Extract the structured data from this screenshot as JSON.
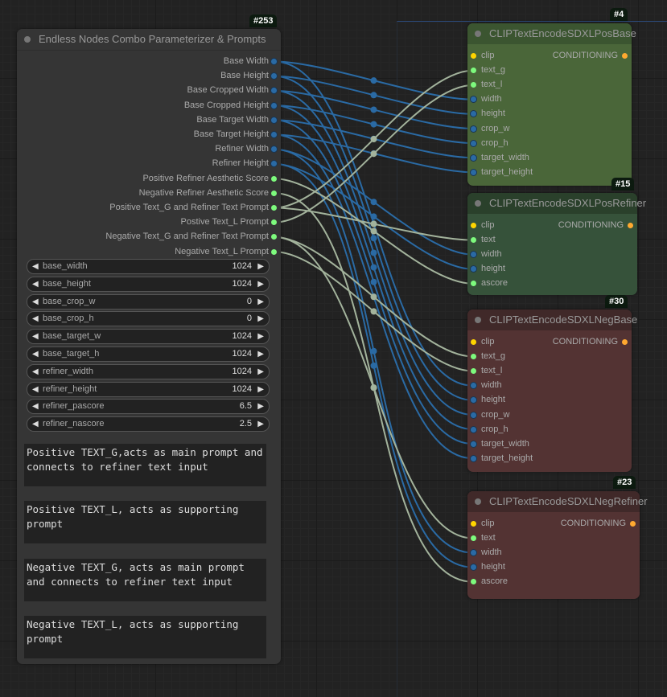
{
  "main_node": {
    "id": "#253",
    "title": "Endless Nodes Combo Parameterizer & Prompts",
    "outputs": [
      {
        "label": "Base Width",
        "type": "INT"
      },
      {
        "label": "Base Height",
        "type": "INT"
      },
      {
        "label": "Base Cropped Width",
        "type": "INT"
      },
      {
        "label": "Base Cropped Height",
        "type": "INT"
      },
      {
        "label": "Base Target Width",
        "type": "INT"
      },
      {
        "label": "Base Target Height",
        "type": "INT"
      },
      {
        "label": "Refiner Width",
        "type": "INT"
      },
      {
        "label": "Refiner Height",
        "type": "INT"
      },
      {
        "label": "Positive Refiner Aesthetic Score",
        "type": "FLOAT"
      },
      {
        "label": "Negative Refiner Aesthetic Score",
        "type": "FLOAT"
      },
      {
        "label": "Positive Text_G and Refiner Text Prompt",
        "type": "STRING"
      },
      {
        "label": "Postive Text_L Prompt",
        "type": "STRING"
      },
      {
        "label": "Negative Text_G and Refiner Text Prompt",
        "type": "STRING"
      },
      {
        "label": "Negative Text_L Prompt",
        "type": "STRING"
      }
    ],
    "widgets": [
      {
        "name": "base_width",
        "value": "1024"
      },
      {
        "name": "base_height",
        "value": "1024"
      },
      {
        "name": "base_crop_w",
        "value": "0"
      },
      {
        "name": "base_crop_h",
        "value": "0"
      },
      {
        "name": "base_target_w",
        "value": "1024"
      },
      {
        "name": "base_target_h",
        "value": "1024"
      },
      {
        "name": "refiner_width",
        "value": "1024"
      },
      {
        "name": "refiner_height",
        "value": "1024"
      },
      {
        "name": "refiner_pascore",
        "value": "6.5"
      },
      {
        "name": "refiner_nascore",
        "value": "2.5"
      }
    ],
    "prompts": [
      "Positive TEXT_G,acts as main prompt and connects to refiner text input",
      "Positive TEXT_L, acts as supporting prompt",
      "Negative TEXT_G, acts as main prompt and connects to refiner text input",
      "Negative TEXT_L, acts as supporting prompt"
    ]
  },
  "nodes": [
    {
      "id": "#4",
      "title": "CLIPTextEncodeSDXLPosBase",
      "output": "CONDITIONING",
      "inputs": [
        "clip",
        "text_g",
        "text_l",
        "width",
        "height",
        "crop_w",
        "crop_h",
        "target_width",
        "target_height"
      ]
    },
    {
      "id": "#15",
      "title": "CLIPTextEncodeSDXLPosRefiner",
      "output": "CONDITIONING",
      "inputs": [
        "clip",
        "text",
        "width",
        "height",
        "ascore"
      ]
    },
    {
      "id": "#30",
      "title": "CLIPTextEncodeSDXLNegBase",
      "output": "CONDITIONING",
      "inputs": [
        "clip",
        "text_g",
        "text_l",
        "width",
        "height",
        "crop_w",
        "crop_h",
        "target_width",
        "target_height"
      ]
    },
    {
      "id": "#23",
      "title": "CLIPTextEncodeSDXLNegRefiner",
      "output": "CONDITIONING",
      "inputs": [
        "clip",
        "text",
        "width",
        "height",
        "ascore"
      ]
    }
  ],
  "links": [
    [
      "Base Width",
      "#4",
      "width"
    ],
    [
      "Base Width",
      "#30",
      "width"
    ],
    [
      "Base Height",
      "#4",
      "height"
    ],
    [
      "Base Height",
      "#30",
      "height"
    ],
    [
      "Base Cropped Width",
      "#4",
      "crop_w"
    ],
    [
      "Base Cropped Width",
      "#30",
      "crop_w"
    ],
    [
      "Base Cropped Height",
      "#4",
      "crop_h"
    ],
    [
      "Base Cropped Height",
      "#30",
      "crop_h"
    ],
    [
      "Base Target Width",
      "#4",
      "target_width"
    ],
    [
      "Base Target Width",
      "#30",
      "target_width"
    ],
    [
      "Base Target Height",
      "#4",
      "target_height"
    ],
    [
      "Base Target Height",
      "#30",
      "target_height"
    ],
    [
      "Refiner Width",
      "#15",
      "width"
    ],
    [
      "Refiner Width",
      "#23",
      "width"
    ],
    [
      "Refiner Height",
      "#15",
      "height"
    ],
    [
      "Refiner Height",
      "#23",
      "height"
    ],
    [
      "Positive Refiner Aesthetic Score",
      "#15",
      "ascore"
    ],
    [
      "Negative Refiner Aesthetic Score",
      "#23",
      "ascore"
    ],
    [
      "Positive Text_G and Refiner Text Prompt",
      "#4",
      "text_g"
    ],
    [
      "Positive Text_G and Refiner Text Prompt",
      "#15",
      "text"
    ],
    [
      "Postive Text_L Prompt",
      "#4",
      "text_l"
    ],
    [
      "Negative Text_G and Refiner Text Prompt",
      "#30",
      "text_g"
    ],
    [
      "Negative Text_G and Refiner Text Prompt",
      "#23",
      "text"
    ],
    [
      "Negative Text_L Prompt",
      "#30",
      "text_l"
    ]
  ],
  "colors": {
    "int_link": "#2a6aa4",
    "string_link": "#a3b39c",
    "pos_base_body": "#4a6639",
    "pos_base_title": "#3b5530",
    "pos_ref_body": "#36523a",
    "pos_ref_title": "#2a402b",
    "neg_body": "#533333",
    "neg_title": "#402929",
    "main_body": "#353535"
  }
}
